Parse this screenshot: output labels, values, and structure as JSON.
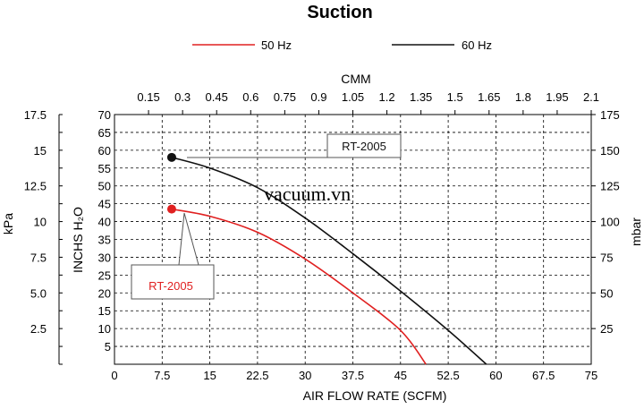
{
  "chart_data": {
    "type": "line",
    "title": "Suction",
    "legend": [
      {
        "name": "50 Hz",
        "color": "#e02020"
      },
      {
        "name": "60 Hz",
        "color": "#111111"
      }
    ],
    "legend_position": "top-center",
    "grid": true,
    "x_axis": {
      "label": "AIR FLOW RATE (SCFM)",
      "range": [
        0,
        75
      ],
      "ticks": [
        "0",
        "7.5",
        "15",
        "22.5",
        "30",
        "37.5",
        "45",
        "52.5",
        "60",
        "67.5",
        "75"
      ]
    },
    "x2_axis": {
      "label": "CMM",
      "range": [
        0,
        2.1
      ],
      "ticks": [
        "0.15",
        "0.3",
        "0.45",
        "0.6",
        "0.75",
        "0.9",
        "1.05",
        "1.2",
        "1.35",
        "1.5",
        "1.65",
        "1.8",
        "1.95",
        "2.1"
      ]
    },
    "y_axis": {
      "label": "INCHS H₂O",
      "range": [
        0,
        70
      ],
      "ticks": [
        "5",
        "10",
        "15",
        "20",
        "25",
        "30",
        "35",
        "40",
        "45",
        "50",
        "55",
        "60",
        "65",
        "70"
      ]
    },
    "y_kpa_axis": {
      "label": "kPa",
      "range": [
        0,
        17.5
      ],
      "ticks": [
        "2.5",
        "5.0",
        "7.5",
        "10",
        "12.5",
        "15",
        "17.5"
      ]
    },
    "y2_axis": {
      "label": "mbar",
      "range": [
        0,
        175
      ],
      "ticks": [
        "25",
        "50",
        "75",
        "100",
        "125",
        "150",
        "175"
      ]
    },
    "series": [
      {
        "name": "50 Hz",
        "color": "#e02020",
        "points": [
          [
            9,
            43.5
          ],
          [
            15,
            41.5
          ],
          [
            22.5,
            37
          ],
          [
            30,
            29.5
          ],
          [
            37.5,
            20
          ],
          [
            45,
            9.5
          ],
          [
            49,
            0
          ]
        ]
      },
      {
        "name": "60 Hz",
        "color": "#111111",
        "points": [
          [
            9,
            58
          ],
          [
            15,
            55
          ],
          [
            22.5,
            49.5
          ],
          [
            30,
            41
          ],
          [
            37.5,
            31
          ],
          [
            45,
            20.5
          ],
          [
            52.5,
            9.5
          ],
          [
            58.5,
            0
          ]
        ]
      }
    ],
    "annotations": [
      {
        "text": "RT-2005",
        "color": "#111111",
        "series": "60 Hz"
      },
      {
        "text": "RT-2005",
        "color": "#e02020",
        "series": "50 Hz"
      }
    ],
    "watermark": "vacuum.vn"
  }
}
